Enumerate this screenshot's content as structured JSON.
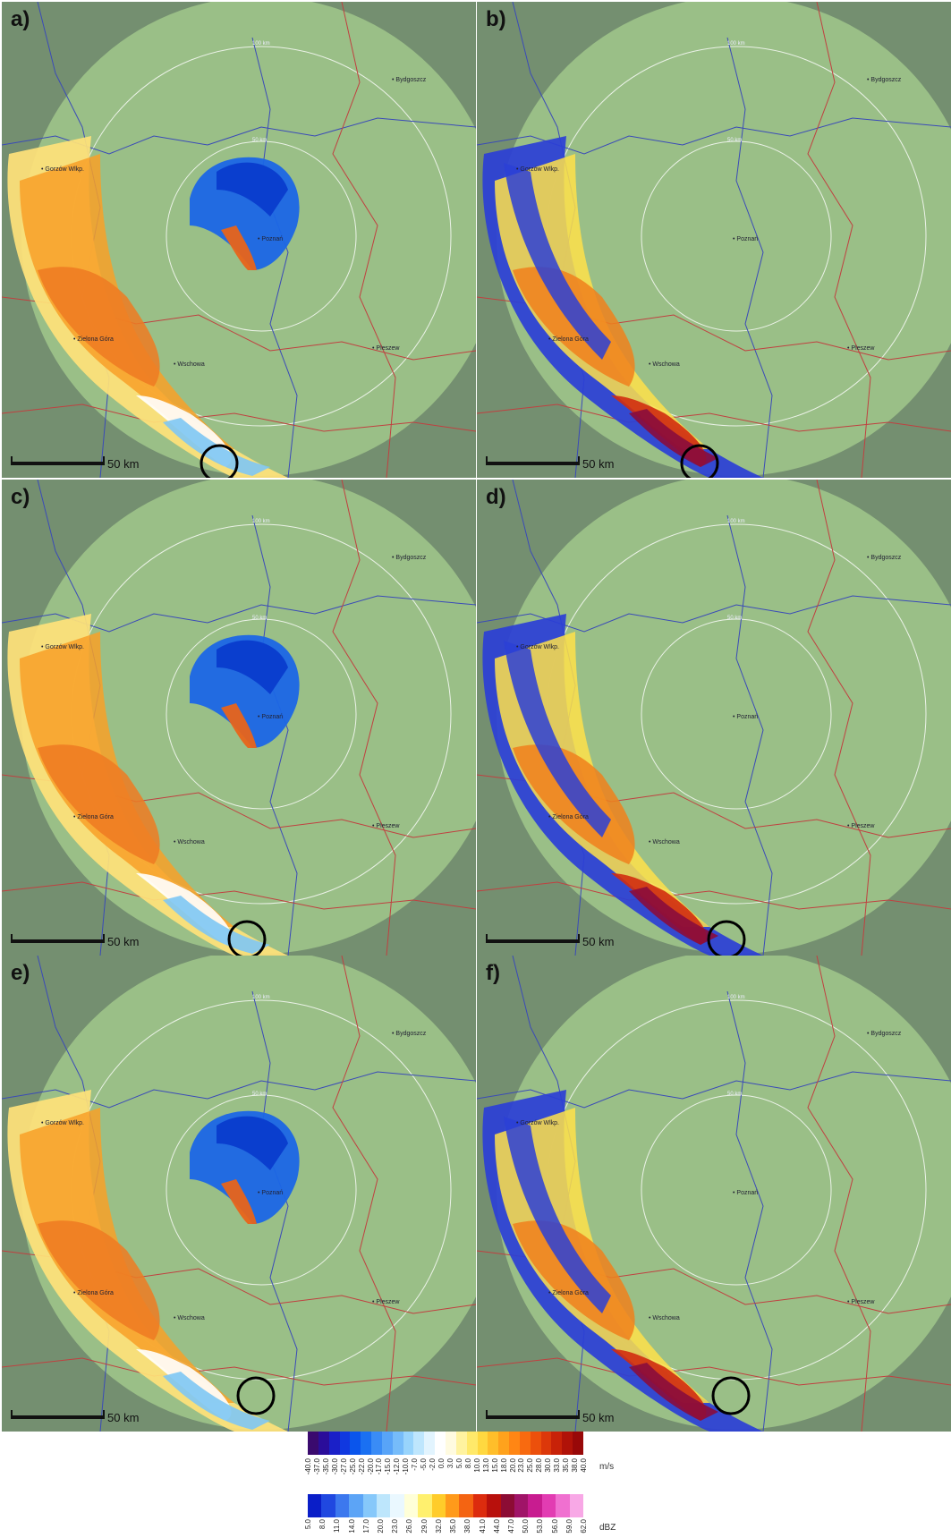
{
  "panels": [
    {
      "label": "a)",
      "type": "velocity"
    },
    {
      "label": "b)",
      "type": "reflectivity"
    },
    {
      "label": "c)",
      "type": "velocity"
    },
    {
      "label": "d)",
      "type": "reflectivity"
    },
    {
      "label": "e)",
      "type": "velocity"
    },
    {
      "label": "f)",
      "type": "reflectivity"
    }
  ],
  "scale_label": "50 km",
  "cities": [
    "Bydgoszcz",
    "Gorzów Wlkp.",
    "Poznań",
    "Zielona Góra",
    "Wschowa",
    "Pleszew"
  ],
  "rings": [
    "50 km",
    "100 km"
  ],
  "legend": {
    "velocity_unit": "m/s",
    "velocity_ticks": [
      "-40.0",
      "-37.0",
      "-35.0",
      "-30.0",
      "-27.0",
      "-25.0",
      "-22.0",
      "-20.0",
      "-17.0",
      "-15.0",
      "-12.0",
      "-10.0",
      "-7.0",
      "-5.0",
      "-2.0",
      "0.0",
      "3.0",
      "5.0",
      "8.0",
      "10.0",
      "13.0",
      "15.0",
      "18.0",
      "20.0",
      "23.0",
      "25.0",
      "28.0",
      "30.0",
      "33.0",
      "35.0",
      "38.0",
      "40.0"
    ],
    "velocity_colors": [
      "#3a0a6e",
      "#2a0d9a",
      "#1a20c8",
      "#1038e0",
      "#0a55ec",
      "#1a70f2",
      "#3a8cf6",
      "#58a4f8",
      "#76bcfa",
      "#98d4fc",
      "#bee6fd",
      "#e2f4fe",
      "#ffffff",
      "#fffbe0",
      "#fff3a0",
      "#ffe96a",
      "#ffd840",
      "#ffbe2a",
      "#ffa21c",
      "#ff8614",
      "#f86a10",
      "#ec500c",
      "#dc380a",
      "#c82208",
      "#b01208",
      "#980808"
    ],
    "reflectivity_unit": "dBZ",
    "reflectivity_ticks": [
      "5.0",
      "8.0",
      "11.0",
      "14.0",
      "17.0",
      "20.0",
      "23.0",
      "26.0",
      "29.0",
      "32.0",
      "35.0",
      "38.0",
      "41.0",
      "44.0",
      "47.0",
      "50.0",
      "53.0",
      "56.0",
      "59.0",
      "62.0"
    ],
    "reflectivity_colors": [
      "#0a1ec8",
      "#2048e0",
      "#3c78ee",
      "#5ca4f6",
      "#86c8fa",
      "#bde6fc",
      "#eaf8ff",
      "#ffffd8",
      "#fff06e",
      "#ffcc2a",
      "#ff9a1a",
      "#f46412",
      "#dc2c0e",
      "#b8100c",
      "#8c0c34",
      "#a01468",
      "#c81c90",
      "#e23cb2",
      "#f070d0",
      "#f8a8e6"
    ]
  }
}
